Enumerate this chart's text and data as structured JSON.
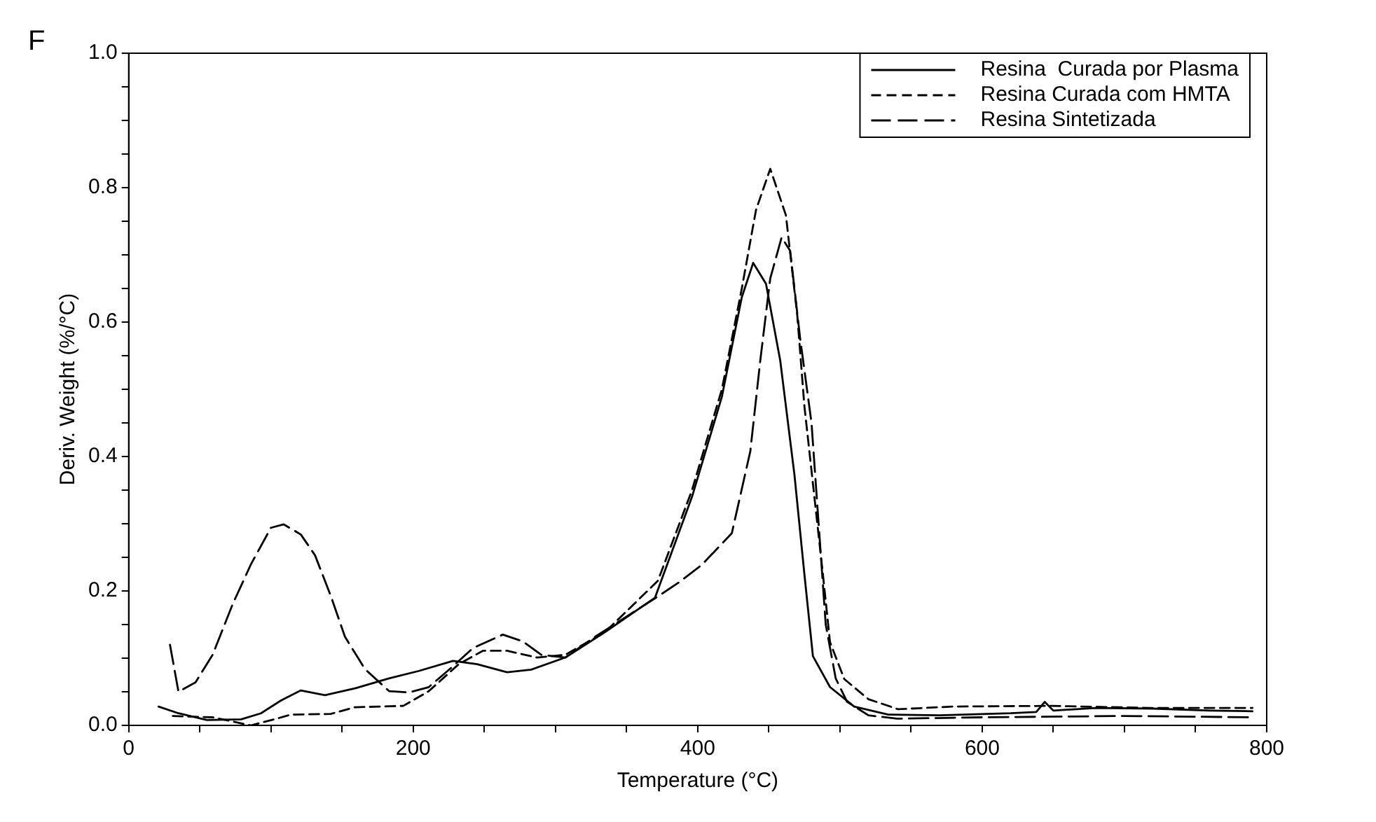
{
  "chart_data": {
    "type": "line",
    "xlabel": "Temperature (°C)",
    "ylabel": "Deriv. Weight (%/°C)",
    "annotations": [
      "F"
    ],
    "xlim": [
      0,
      800
    ],
    "ylim": [
      0,
      1.0
    ],
    "xticks": [
      0,
      {
        "value": 50,
        "label": null
      },
      {
        "value": 100,
        "label": null
      },
      {
        "value": 150,
        "label": null
      },
      200,
      {
        "value": 250,
        "label": null
      },
      {
        "value": 300,
        "label": null
      },
      {
        "value": 350,
        "label": null
      },
      400,
      {
        "value": 450,
        "label": null
      },
      {
        "value": 500,
        "label": null
      },
      {
        "value": 550,
        "label": null
      },
      600,
      {
        "value": 650,
        "label": null
      },
      {
        "value": 700,
        "label": null
      },
      {
        "value": 750,
        "label": null
      },
      800
    ],
    "yticks": [
      {
        "value": 0,
        "label": "0.0"
      },
      {
        "value": 0.05,
        "label": null
      },
      {
        "value": 0.1,
        "label": null
      },
      {
        "value": 0.15,
        "label": null
      },
      {
        "value": 0.2,
        "label": "0.2"
      },
      {
        "value": 0.25,
        "label": null
      },
      {
        "value": 0.3,
        "label": null
      },
      {
        "value": 0.35,
        "label": null
      },
      {
        "value": 0.4,
        "label": "0.4"
      },
      {
        "value": 0.45,
        "label": null
      },
      {
        "value": 0.5,
        "label": null
      },
      {
        "value": 0.55,
        "label": null
      },
      {
        "value": 0.6,
        "label": "0.6"
      },
      {
        "value": 0.65,
        "label": null
      },
      {
        "value": 0.7,
        "label": null
      },
      {
        "value": 0.75,
        "label": null
      },
      {
        "value": 0.8,
        "label": "0.8"
      },
      {
        "value": 0.85,
        "label": null
      },
      {
        "value": 0.9,
        "label": null
      },
      {
        "value": 0.95,
        "label": null
      },
      {
        "value": 1.0,
        "label": "1.0"
      }
    ],
    "grid": false,
    "legend": "top right",
    "marker": "none",
    "series": [
      {
        "name": "Resina  Curada por Plasma",
        "color": "#000000",
        "line_style": "solid",
        "x": [
          21,
          35,
          55,
          79,
          93,
          107,
          121,
          138,
          159,
          183,
          204,
          228,
          245,
          266,
          283,
          307,
          335,
          370,
          396,
          417,
          431,
          439,
          448,
          458,
          468,
          475,
          481,
          493,
          510,
          534,
          570,
          620,
          638,
          644,
          650,
          680,
          720,
          760,
          790
        ],
        "values": [
          0.028,
          0.018,
          0.008,
          0.009,
          0.018,
          0.037,
          0.052,
          0.045,
          0.055,
          0.07,
          0.081,
          0.096,
          0.091,
          0.079,
          0.083,
          0.101,
          0.139,
          0.19,
          0.34,
          0.489,
          0.637,
          0.688,
          0.657,
          0.543,
          0.373,
          0.225,
          0.103,
          0.057,
          0.028,
          0.016,
          0.015,
          0.018,
          0.02,
          0.035,
          0.022,
          0.026,
          0.025,
          0.022,
          0.021
        ]
      },
      {
        "name": "Resina Curada com HMTA",
        "color": "#000000",
        "line_style": "dashed",
        "x": [
          31,
          59,
          86,
          104,
          114,
          142,
          159,
          193,
          211,
          232,
          249,
          266,
          287,
          307,
          335,
          372,
          396,
          417,
          431,
          441,
          451,
          462,
          470,
          475,
          488,
          493,
          503,
          520,
          541,
          579,
          648,
          717,
          790
        ],
        "values": [
          0.014,
          0.012,
          0.0,
          0.01,
          0.016,
          0.017,
          0.027,
          0.029,
          0.051,
          0.091,
          0.111,
          0.111,
          0.101,
          0.105,
          0.139,
          0.215,
          0.35,
          0.5,
          0.65,
          0.767,
          0.828,
          0.759,
          0.61,
          0.475,
          0.225,
          0.124,
          0.069,
          0.039,
          0.024,
          0.028,
          0.029,
          0.026,
          0.026
        ]
      },
      {
        "name": "Resina Sintetizada",
        "color": "#000000",
        "line_style": "dashed",
        "x": [
          29,
          35,
          47,
          59,
          73,
          86,
          100,
          109,
          121,
          131,
          142,
          152,
          166,
          183,
          197,
          211,
          228,
          242,
          263,
          277,
          290,
          307,
          328,
          353,
          370,
          387,
          403,
          424,
          437,
          444,
          451,
          459,
          465,
          472,
          480,
          485,
          490,
          497,
          505,
          520,
          540,
          600,
          700,
          790
        ],
        "values": [
          0.12,
          0.05,
          0.064,
          0.105,
          0.18,
          0.24,
          0.294,
          0.299,
          0.284,
          0.253,
          0.193,
          0.132,
          0.084,
          0.051,
          0.049,
          0.057,
          0.088,
          0.115,
          0.135,
          0.125,
          0.105,
          0.101,
          0.132,
          0.166,
          0.189,
          0.213,
          0.239,
          0.286,
          0.408,
          0.543,
          0.665,
          0.726,
          0.706,
          0.576,
          0.45,
          0.3,
          0.15,
          0.07,
          0.035,
          0.015,
          0.01,
          0.012,
          0.014,
          0.012
        ]
      }
    ]
  }
}
